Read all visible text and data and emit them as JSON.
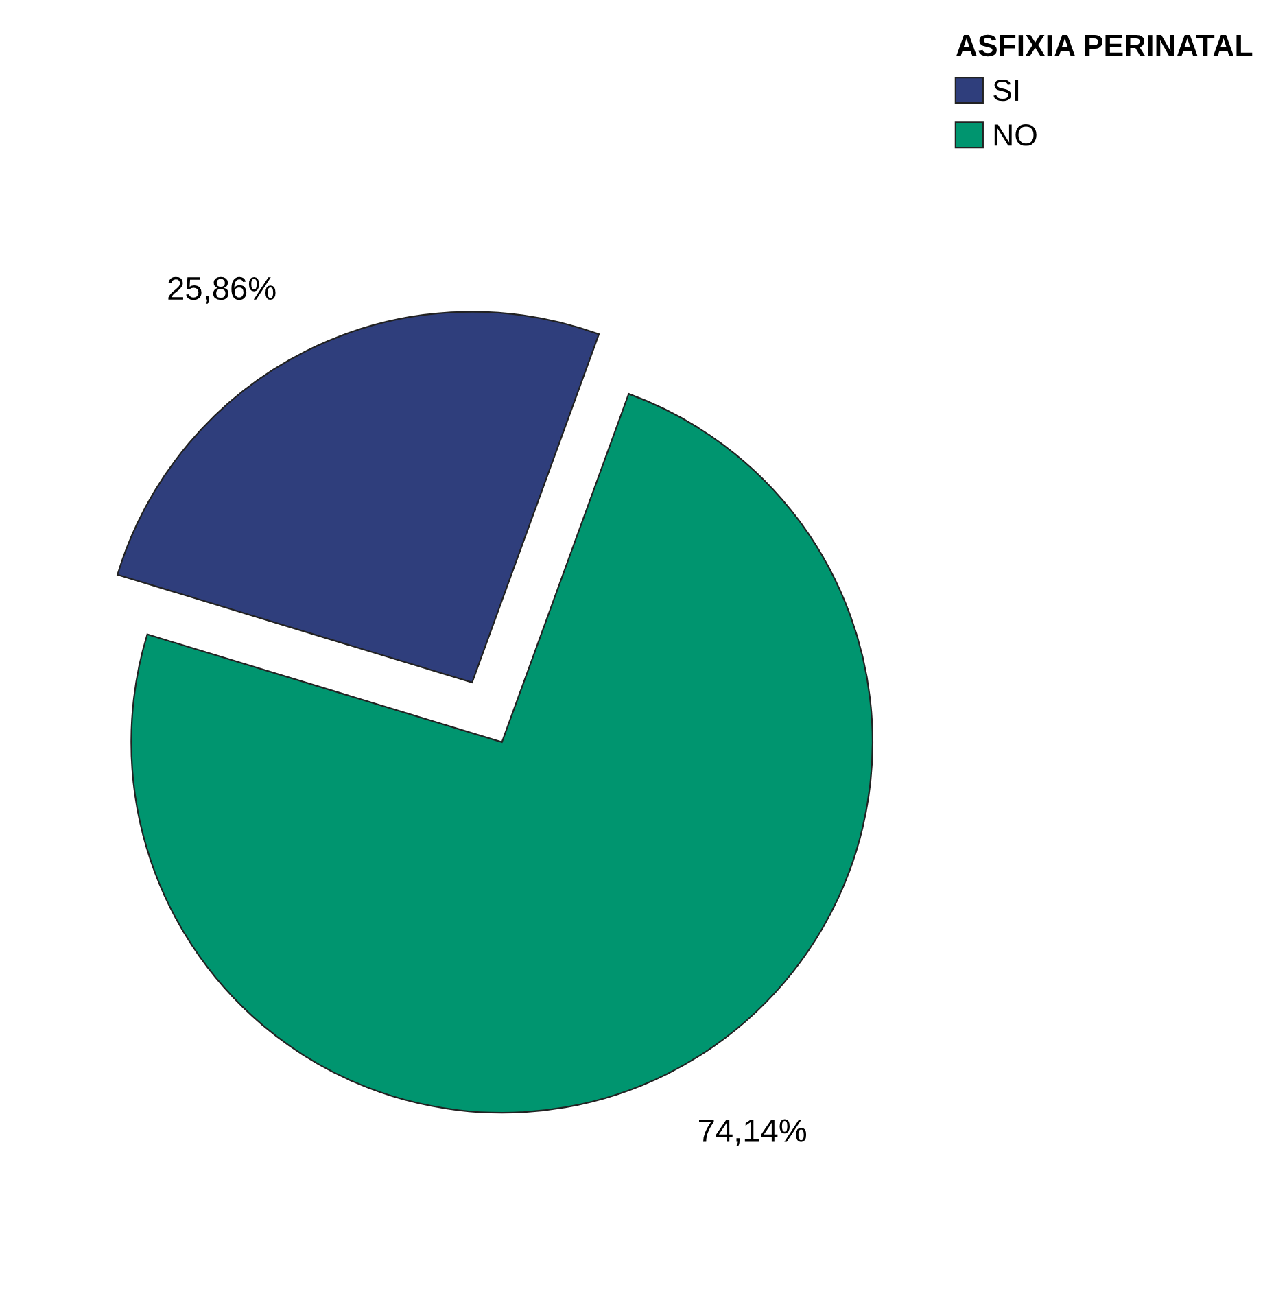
{
  "chart_data": {
    "type": "pie",
    "legend_title": "ASFIXIA PERINATAL",
    "categories": [
      "SI",
      "NO"
    ],
    "values": [
      25.86,
      74.14
    ],
    "value_labels": [
      "25,86%",
      "74,14%"
    ],
    "colors": [
      "#2f3e7c",
      "#00956f"
    ],
    "legend": "top right"
  }
}
